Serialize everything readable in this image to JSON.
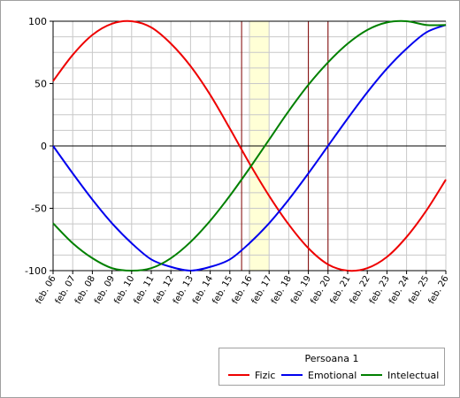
{
  "chart_data": {
    "type": "line",
    "title": "",
    "xlabel": "",
    "ylabel": "",
    "ylim": [
      -100,
      100
    ],
    "yticks": [
      100,
      50,
      0,
      -50,
      -100
    ],
    "xlim": [
      0,
      20
    ],
    "categories": [
      "feb. 06",
      "feb. 07",
      "feb. 08",
      "feb. 09",
      "feb. 10",
      "feb. 11",
      "feb. 12",
      "feb. 13",
      "feb. 14",
      "feb. 15",
      "feb. 16",
      "feb. 17",
      "feb. 18",
      "feb. 19",
      "feb. 20",
      "feb. 21",
      "feb. 22",
      "feb. 23",
      "feb. 24",
      "feb. 25",
      "feb. 26"
    ],
    "grid": true,
    "highlight_range": {
      "from": "feb. 16",
      "to": "feb. 17",
      "color": "#ffffd6"
    },
    "marker_lines": [
      "feb. 15.6",
      "feb. 19",
      "feb. 20"
    ],
    "marker_line_color": "#800000",
    "zero_line": 0,
    "series": [
      {
        "name": "Fizic",
        "color": "#ee0000",
        "values": [
          52,
          73,
          89,
          98,
          100,
          95,
          82,
          64,
          41,
          14,
          -14,
          -40,
          -63,
          -82,
          -95,
          -100,
          -98,
          -89,
          -73,
          -52,
          -27
        ]
      },
      {
        "name": "Emotional",
        "color": "#0000ee",
        "values": [
          0,
          -22,
          -43,
          -62,
          -78,
          -91,
          -97,
          -100,
          -97,
          -91,
          -78,
          -62,
          -43,
          -22,
          0,
          22,
          43,
          62,
          78,
          91,
          97
        ]
      },
      {
        "name": "Intelectual",
        "color": "#008000",
        "values": [
          -62,
          -78,
          -90,
          -98,
          -100,
          -98,
          -90,
          -77,
          -60,
          -40,
          -18,
          5,
          28,
          49,
          67,
          82,
          93,
          99,
          100,
          97,
          97
        ]
      }
    ],
    "legend": {
      "title": "Persoana 1",
      "position": "bottom-right"
    }
  }
}
